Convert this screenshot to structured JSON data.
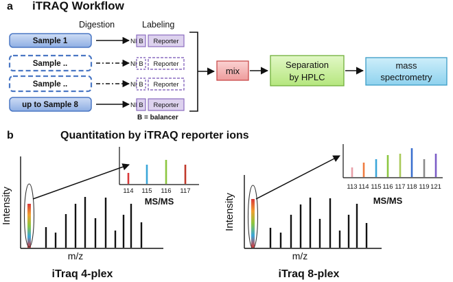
{
  "panel_a": {
    "letter": "a",
    "title": "iTRAQ Workflow",
    "col_digestion": "Digestion",
    "col_labeling": "Labeling",
    "samples": [
      "Sample 1",
      "Sample ..",
      "Sample ..",
      "up to Sample 8"
    ],
    "tag_prefix": "NHS",
    "balancer_letter": "B",
    "reporter_label": "Reporter",
    "legend": "B  =  balancer",
    "mix_label": "mix",
    "separation_label_1": "Separation",
    "separation_label_2": "by HPLC",
    "ms_label_1": "mass",
    "ms_label_2": "spectrometry"
  },
  "panel_b": {
    "letter": "b",
    "title": "Quantitation by iTRAQ reporter ions",
    "left": {
      "ylabel": "Intensity",
      "xlabel": "m/z",
      "caption": "iTraq 4-plex",
      "inset_title": "MS/MS",
      "inset_ticks": [
        "114",
        "115",
        "116",
        "117"
      ],
      "inset_colors": [
        "#d93838",
        "#3aa6d9",
        "#8cc63f",
        "#c0392b"
      ]
    },
    "right": {
      "ylabel": "Intensity",
      "xlabel": "m/z",
      "caption": "iTraq 8-plex",
      "inset_title": "MS/MS",
      "inset_ticks": [
        "113",
        "114",
        "115",
        "116",
        "117",
        "118",
        "119",
        "121"
      ],
      "inset_colors": [
        "#e8a0a8",
        "#f07b3f",
        "#3aa6d9",
        "#8cc63f",
        "#a9c95a",
        "#3b6fcf",
        "#8a8a8a",
        "#7b5cc7"
      ]
    }
  },
  "colors": {
    "sample_fill": "#9fb9e6",
    "sample_border": "#4a77c4",
    "tag_fill": "#ddd2ee",
    "tag_border": "#8a6bbf",
    "mix_fill": "#f2aaaa",
    "mix_border": "#c84b4b",
    "hplc_fill": "#c8ef9a",
    "hplc_border": "#6fae3a",
    "ms_fill": "#a8ddf2",
    "ms_border": "#3a9cc6"
  }
}
